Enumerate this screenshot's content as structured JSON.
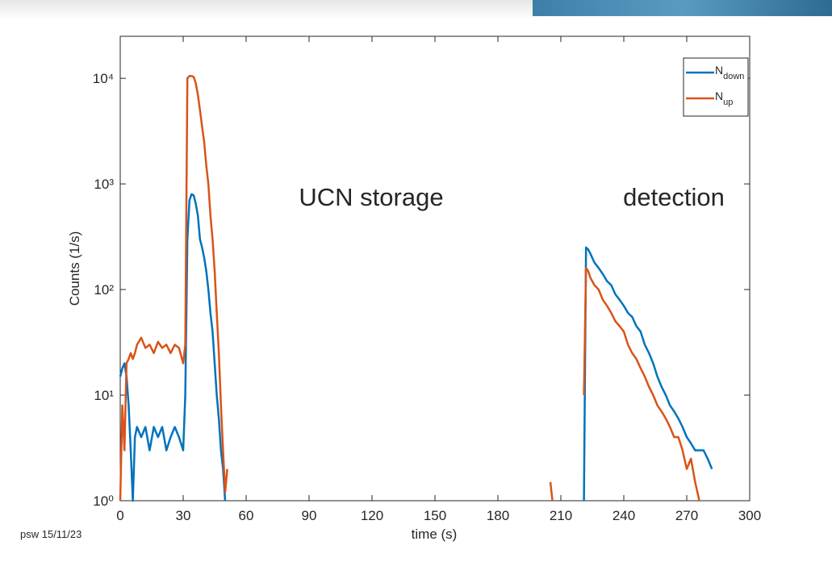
{
  "chart_data": {
    "type": "line",
    "y_label": "Counts (1/s)",
    "x_label": "time (s)",
    "annotations": [
      "UCN storage",
      "detection",
      "psw 15/11/23"
    ],
    "x": [
      0,
      1,
      2,
      3,
      4,
      5,
      6,
      7,
      8,
      10,
      12,
      14,
      16,
      18,
      20,
      22,
      24,
      26,
      28,
      30,
      31,
      32,
      33,
      34,
      35,
      36,
      37,
      38,
      39,
      40,
      41,
      42,
      43,
      44,
      45,
      46,
      47,
      48,
      49,
      50,
      51,
      100,
      205,
      206,
      215,
      221,
      222,
      223,
      224,
      226,
      228,
      230,
      232,
      234,
      236,
      238,
      240,
      242,
      244,
      246,
      248,
      250,
      252,
      254,
      256,
      258,
      260,
      262,
      264,
      266,
      268,
      270,
      272,
      274,
      276,
      278,
      280,
      282
    ],
    "series": [
      {
        "name": "Ndown",
        "color": "#0072bd",
        "values": [
          15,
          18,
          20,
          15,
          8,
          3,
          1,
          4,
          5,
          4,
          5,
          3,
          5,
          4,
          5,
          3,
          4,
          5,
          4,
          3,
          10,
          300,
          700,
          800,
          780,
          650,
          500,
          300,
          250,
          200,
          150,
          100,
          60,
          40,
          20,
          10,
          6,
          3,
          2,
          1,
          null,
          null,
          null,
          null,
          null,
          1,
          250,
          240,
          220,
          180,
          160,
          140,
          120,
          110,
          90,
          80,
          70,
          60,
          55,
          45,
          40,
          30,
          25,
          20,
          15,
          12,
          10,
          8,
          7,
          6,
          5,
          4,
          3.5,
          3,
          3,
          3,
          2.5,
          2
        ]
      },
      {
        "name": "Nup",
        "color": "#d95319",
        "values": [
          1,
          8,
          3,
          20,
          22,
          25,
          22,
          25,
          30,
          35,
          28,
          30,
          25,
          32,
          28,
          30,
          25,
          30,
          28,
          20,
          30,
          10000,
          10500,
          10500,
          10300,
          9000,
          7000,
          5000,
          3500,
          2500,
          1500,
          1000,
          500,
          300,
          150,
          60,
          25,
          8,
          3,
          1.2,
          2,
          null,
          1.5,
          1,
          null,
          10,
          160,
          150,
          130,
          110,
          100,
          80,
          70,
          60,
          50,
          45,
          40,
          30,
          25,
          22,
          18,
          15,
          12,
          10,
          8,
          7,
          6,
          5,
          4,
          4,
          3,
          2,
          2.5,
          1.5,
          1,
          null,
          null,
          null
        ]
      }
    ],
    "xlim": [
      0,
      300
    ],
    "xticks": [
      0,
      30,
      60,
      90,
      120,
      150,
      180,
      210,
      240,
      270,
      300
    ],
    "ylim": [
      1,
      25000
    ],
    "log_y": true,
    "yticks": [
      {
        "value": 1,
        "label": "10⁰"
      },
      {
        "value": 10,
        "label": "10¹"
      },
      {
        "value": 100,
        "label": "10²"
      },
      {
        "value": 1000,
        "label": "10³"
      },
      {
        "value": 10000,
        "label": "10⁴"
      }
    ],
    "legend": "upper right"
  }
}
